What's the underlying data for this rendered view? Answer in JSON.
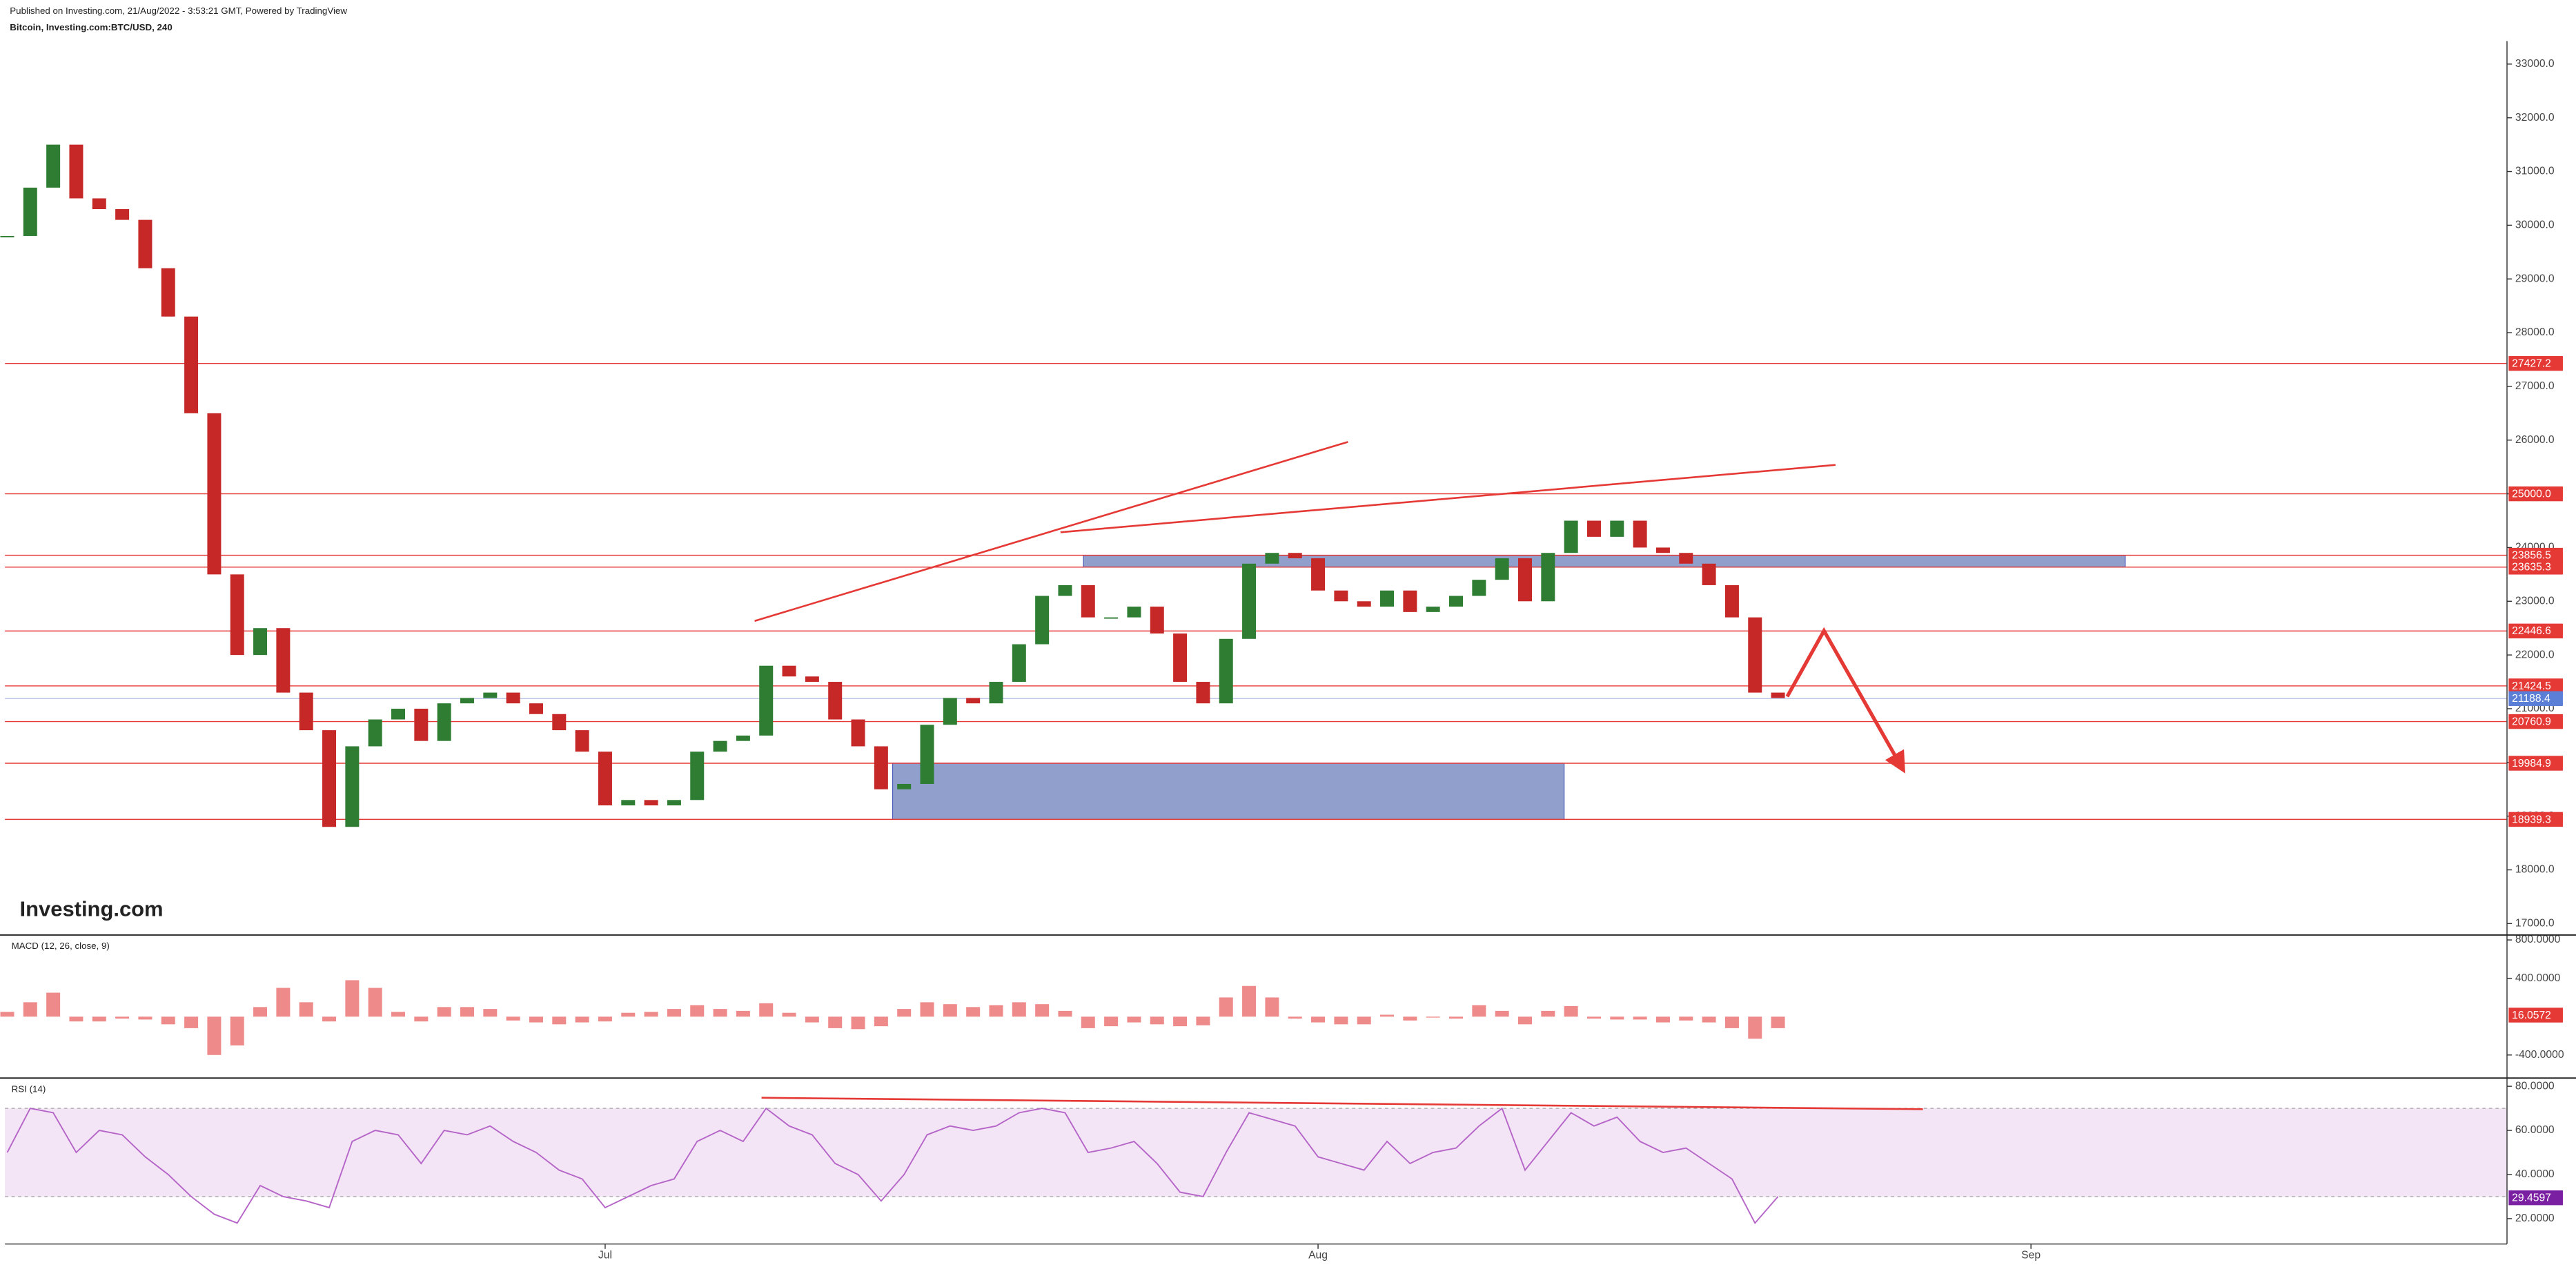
{
  "header": {
    "published": "Published on Investing.com, 21/Aug/2022 - 3:53:21 GMT, Powered by TradingView",
    "symbol": "Bitcoin, Investing.com:BTC/USD, 240"
  },
  "watermark": "Investing.com",
  "chart_data": [
    {
      "type": "candlestick",
      "x": [
        -26,
        -25,
        -24,
        -23,
        -22,
        -21,
        -20,
        -19,
        -18,
        -17,
        -16,
        -15,
        -14,
        -13,
        -12,
        -11,
        -10,
        -9,
        -8,
        -7,
        -6,
        -5,
        -4,
        -3,
        -2,
        -1,
        0,
        1,
        2,
        3,
        4,
        5,
        6,
        7,
        8,
        9,
        10,
        11,
        12,
        13,
        14,
        15,
        16,
        17,
        18,
        19,
        20,
        21,
        22,
        23,
        24,
        25,
        26,
        27,
        28,
        29,
        30,
        31,
        32,
        33,
        34,
        35,
        36,
        37,
        38,
        39,
        40,
        41,
        42,
        43,
        44,
        45,
        46,
        47,
        48,
        49,
        50,
        51
      ],
      "values": [
        29800,
        30700,
        31500,
        30500,
        30300,
        30100,
        29200,
        28300,
        26500,
        23500,
        22000,
        22500,
        21300,
        20600,
        18800,
        20300,
        20800,
        21000,
        20400,
        21100,
        21200,
        21300,
        21100,
        20900,
        20600,
        20200,
        19200,
        19300,
        19200,
        19300,
        20200,
        20400,
        20500,
        21800,
        21600,
        21500,
        20800,
        20300,
        19500,
        19600,
        20700,
        21200,
        21100,
        21500,
        22200,
        23100,
        23300,
        22700,
        22700,
        22900,
        22400,
        21500,
        21100,
        22300,
        23700,
        23900,
        23800,
        23200,
        23000,
        22900,
        23200,
        22800,
        22900,
        23100,
        23400,
        23800,
        23000,
        23900,
        24500,
        24200,
        24500,
        24000,
        23900,
        23700,
        23300,
        22700,
        21300,
        21200
      ],
      "color_up": "#2e7d32",
      "color_down": "#c62828",
      "xlim": [
        -26.1,
        82.7
      ],
      "ylim": [
        16817,
        33428
      ],
      "yticks": [
        {
          "value": 17000,
          "label": "17000.0"
        },
        {
          "value": 18000,
          "label": "18000.0"
        },
        {
          "value": 19000,
          "label": "19000.0"
        },
        {
          "value": 20000,
          "label": "20000.0"
        },
        {
          "value": 21000,
          "label": "21000.0"
        },
        {
          "value": 22000,
          "label": "22000.0"
        },
        {
          "value": 23000,
          "label": "23000.0"
        },
        {
          "value": 24000,
          "label": "24000.0"
        },
        {
          "value": 25000,
          "label": "25000.0"
        },
        {
          "value": 26000,
          "label": "26000.0"
        },
        {
          "value": 27000,
          "label": "27000.0"
        },
        {
          "value": 28000,
          "label": "28000.0"
        },
        {
          "value": 29000,
          "label": "29000.0"
        },
        {
          "value": 30000,
          "label": "30000.0"
        },
        {
          "value": 31000,
          "label": "31000.0"
        },
        {
          "value": 32000,
          "label": "32000.0"
        },
        {
          "value": 33000,
          "label": "33000.0"
        }
      ],
      "levels": [
        {
          "value": 27427.2,
          "label": "27427.2"
        },
        {
          "value": 25000,
          "label": "25000.0"
        },
        {
          "value": 23856.5,
          "label": "23856.5"
        },
        {
          "value": 23635.3,
          "label": "23635.3"
        },
        {
          "value": 22446.6,
          "label": "22446.6"
        },
        {
          "value": 21424.5,
          "label": "21424.5"
        },
        {
          "value": 20760.9,
          "label": "20760.9"
        },
        {
          "value": 19984.9,
          "label": "19984.9"
        },
        {
          "value": 18939.3,
          "label": "18939.3"
        }
      ],
      "level_color": "#e53935",
      "current": {
        "value": 21188.4,
        "label": "21188.4"
      },
      "current_color": "#5b7fd6",
      "zones": [
        {
          "x": [
            20.8,
            66.1
          ],
          "y": [
            23635.3,
            23856.5
          ]
        },
        {
          "x": [
            12.5,
            41.7
          ],
          "y": [
            18939.3,
            19984.9
          ]
        }
      ],
      "zone_color": "#8c9acb",
      "trendlines": [
        {
          "x": [
            6.5,
            32.3
          ],
          "y": [
            22633,
            25967
          ]
        },
        {
          "x": [
            19.8,
            53.5
          ],
          "y": [
            24284,
            25538
          ]
        }
      ],
      "arrow": {
        "x": [
          51.4,
          53.0,
          56.3
        ],
        "y": [
          21226,
          22450,
          19970
        ]
      }
    },
    {
      "type": "bar",
      "title": "MACD (12, 26, close, 9)",
      "x": [
        -26,
        -25,
        -24,
        -23,
        -22,
        -21,
        -20,
        -19,
        -18,
        -17,
        -16,
        -15,
        -14,
        -13,
        -12,
        -11,
        -10,
        -9,
        -8,
        -7,
        -6,
        -5,
        -4,
        -3,
        -2,
        -1,
        0,
        1,
        2,
        3,
        4,
        5,
        6,
        7,
        8,
        9,
        10,
        11,
        12,
        13,
        14,
        15,
        16,
        17,
        18,
        19,
        20,
        21,
        22,
        23,
        24,
        25,
        26,
        27,
        28,
        29,
        30,
        31,
        32,
        33,
        34,
        35,
        36,
        37,
        38,
        39,
        40,
        41,
        42,
        43,
        44,
        45,
        46,
        47,
        48,
        49,
        50,
        51
      ],
      "values": [
        50,
        150,
        250,
        -50,
        -50,
        -20,
        -30,
        -80,
        -120,
        -400,
        -300,
        100,
        300,
        150,
        -50,
        380,
        300,
        50,
        -50,
        100,
        100,
        80,
        -40,
        -60,
        -80,
        -60,
        -50,
        40,
        50,
        80,
        120,
        80,
        60,
        140,
        40,
        -60,
        -120,
        -130,
        -100,
        80,
        150,
        130,
        100,
        120,
        150,
        130,
        60,
        -120,
        -100,
        -60,
        -80,
        -100,
        -90,
        200,
        320,
        200,
        -20,
        -60,
        -80,
        -80,
        20,
        -40,
        -10,
        -20,
        120,
        60,
        -80,
        60,
        110,
        -20,
        -30,
        -30,
        -60,
        -40,
        -60,
        -120,
        -230,
        -120
      ],
      "color": "#ef8a8a",
      "xlim": [
        -26.1,
        82.7
      ],
      "ylim": [
        -623,
        834
      ],
      "yticks": [
        {
          "value": 800,
          "label": "800.0000"
        },
        {
          "value": 400,
          "label": "400.0000"
        },
        {
          "value": -400,
          "label": "-400.0000"
        }
      ],
      "last": {
        "value": 16.0572,
        "label": "16.0572"
      },
      "last_color": "#e53935"
    },
    {
      "type": "line",
      "title": "RSI (14)",
      "x": [
        -26,
        -25,
        -24,
        -23,
        -22,
        -21,
        -20,
        -19,
        -18,
        -17,
        -16,
        -15,
        -14,
        -13,
        -12,
        -11,
        -10,
        -9,
        -8,
        -7,
        -6,
        -5,
        -4,
        -3,
        -2,
        -1,
        0,
        1,
        2,
        3,
        4,
        5,
        6,
        7,
        8,
        9,
        10,
        11,
        12,
        13,
        14,
        15,
        16,
        17,
        18,
        19,
        20,
        21,
        22,
        23,
        24,
        25,
        26,
        27,
        28,
        29,
        30,
        31,
        32,
        33,
        34,
        35,
        36,
        37,
        38,
        39,
        40,
        41,
        42,
        43,
        44,
        45,
        46,
        47,
        48,
        49,
        50,
        51
      ],
      "values": [
        50,
        70,
        68,
        50,
        60,
        58,
        48,
        40,
        30,
        22,
        18,
        35,
        30,
        28,
        25,
        55,
        60,
        58,
        45,
        60,
        58,
        62,
        55,
        50,
        42,
        38,
        25,
        30,
        35,
        38,
        55,
        60,
        55,
        70,
        62,
        58,
        45,
        40,
        28,
        40,
        58,
        62,
        60,
        62,
        68,
        70,
        68,
        50,
        52,
        55,
        45,
        32,
        30,
        50,
        68,
        65,
        62,
        48,
        45,
        42,
        55,
        45,
        50,
        52,
        62,
        70,
        42,
        55,
        68,
        62,
        66,
        55,
        50,
        52,
        45,
        38,
        18,
        30
      ],
      "color": "#b565c8",
      "band": [
        30,
        70
      ],
      "band_color": "#f3e5f5",
      "xlim": [
        -26.1,
        82.7
      ],
      "ylim": [
        10,
        83
      ],
      "xticks": [
        {
          "value": 0,
          "label": "Jul"
        },
        {
          "value": 31,
          "label": "Aug"
        },
        {
          "value": 62,
          "label": "Sep"
        }
      ],
      "yticks": [
        {
          "value": 80,
          "label": "80.0000"
        },
        {
          "value": 60,
          "label": "60.0000"
        },
        {
          "value": 40,
          "label": "40.0000"
        },
        {
          "value": 20,
          "label": "20.0000"
        }
      ],
      "last": {
        "value": 29.4597,
        "label": "29.4597"
      },
      "last_color": "#7b1fa2",
      "trendline": {
        "x": [
          6.8,
          57.3
        ],
        "y": [
          74.8,
          69.6
        ]
      }
    }
  ]
}
